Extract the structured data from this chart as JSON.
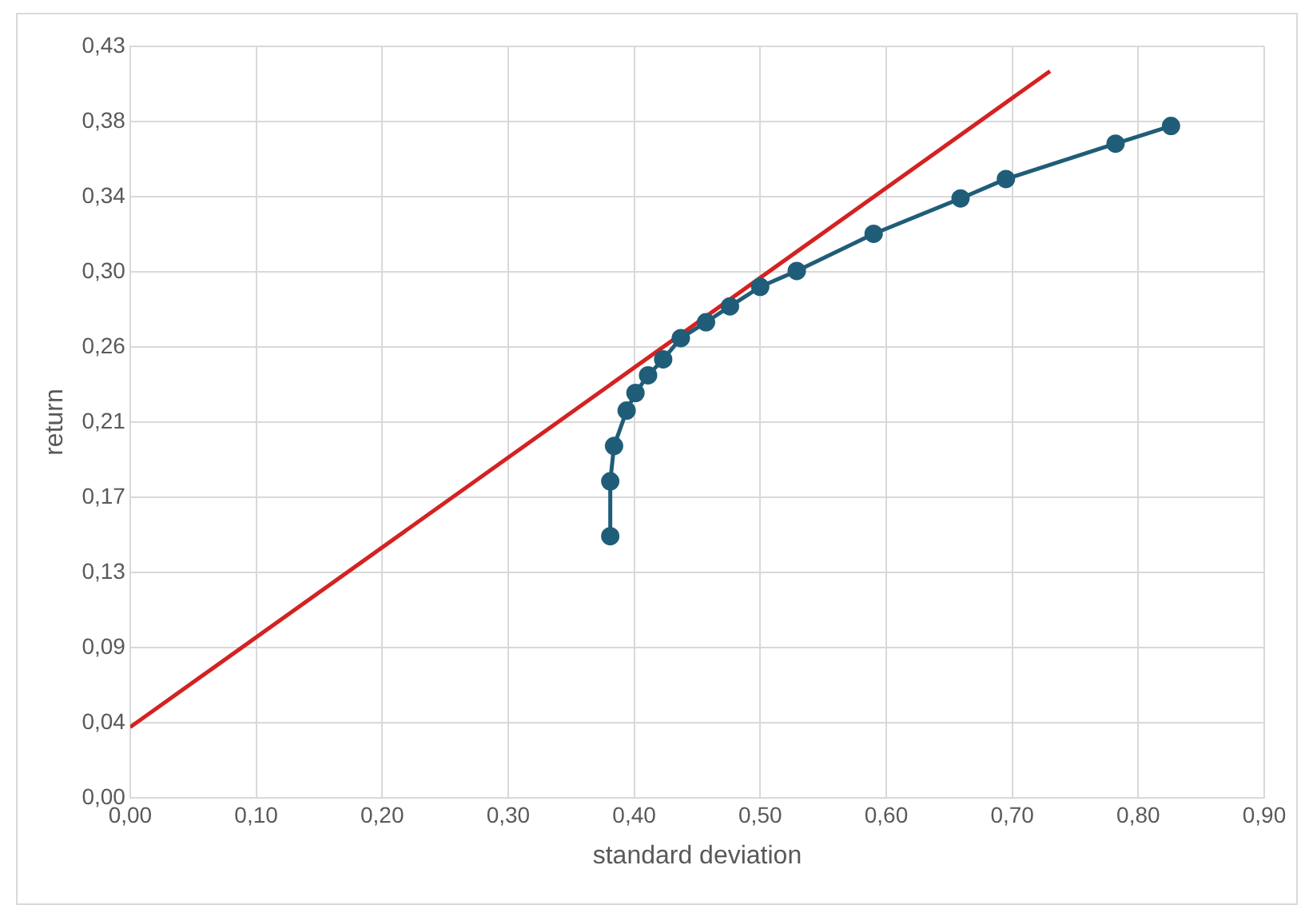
{
  "chart_data": {
    "type": "line",
    "xlabel": "standard deviation",
    "ylabel": "return",
    "xlim": [
      0,
      0.9
    ],
    "ylim": [
      0,
      0.425
    ],
    "xticks": [
      {
        "value": 0,
        "label": "0,00"
      },
      {
        "value": 0.1,
        "label": "0,10"
      },
      {
        "value": 0.2,
        "label": "0,20"
      },
      {
        "value": 0.3,
        "label": "0,30"
      },
      {
        "value": 0.4,
        "label": "0,40"
      },
      {
        "value": 0.5,
        "label": "0,50"
      },
      {
        "value": 0.6,
        "label": "0,60"
      },
      {
        "value": 0.7,
        "label": "0,70"
      },
      {
        "value": 0.8,
        "label": "0,80"
      },
      {
        "value": 0.9,
        "label": "0,90"
      }
    ],
    "yticks": [
      {
        "value": 0,
        "label": "0,00"
      },
      {
        "value": 0.0425,
        "label": "0,04"
      },
      {
        "value": 0.085,
        "label": "0,09"
      },
      {
        "value": 0.1275,
        "label": "0,13"
      },
      {
        "value": 0.17,
        "label": "0,17"
      },
      {
        "value": 0.2125,
        "label": "0,21"
      },
      {
        "value": 0.255,
        "label": "0,26"
      },
      {
        "value": 0.2975,
        "label": "0,30"
      },
      {
        "value": 0.34,
        "label": "0,34"
      },
      {
        "value": 0.3825,
        "label": "0,38"
      },
      {
        "value": 0.425,
        "label": "0,43"
      }
    ],
    "grid": true,
    "legend": false,
    "series": [
      {
        "marker": "circle",
        "color": "#1f5d78",
        "x": [
          0.381,
          0.381,
          0.384,
          0.394,
          0.401,
          0.411,
          0.423,
          0.437,
          0.457,
          0.476,
          0.5,
          0.529,
          0.59,
          0.659,
          0.695,
          0.782,
          0.826
        ],
        "values": [
          0.148,
          0.179,
          0.199,
          0.219,
          0.229,
          0.239,
          0.248,
          0.26,
          0.269,
          0.278,
          0.289,
          0.298,
          0.319,
          0.339,
          0.35,
          0.37,
          0.38
        ]
      },
      {
        "marker": "none",
        "color": "#d42222",
        "x": [
          0,
          0.73
        ],
        "values": [
          0.04,
          0.411
        ]
      }
    ]
  }
}
